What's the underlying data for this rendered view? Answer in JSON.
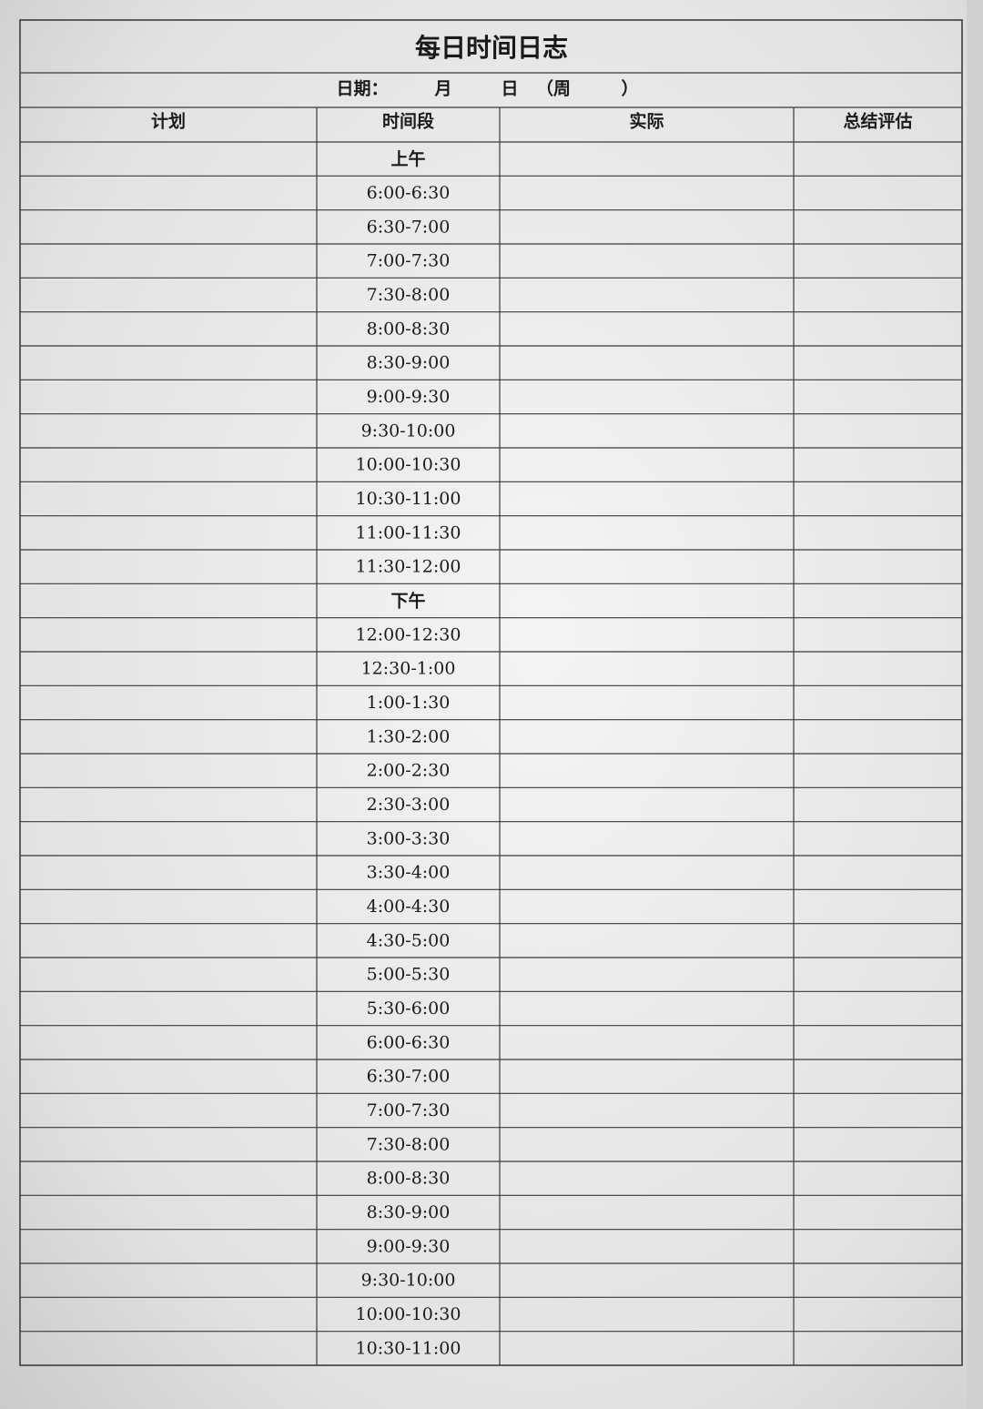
{
  "title": "每日时间日志",
  "date_line": [
    "日期：",
    "月",
    "日",
    "（周",
    "）"
  ],
  "table": {
    "headers": [
      "计划",
      "时间段",
      "实际",
      "总结评估"
    ],
    "rows": [
      "上午",
      "6:00-6:30",
      "6:30-7:00",
      "7:00-7:30",
      "7:30-8:00",
      "8:00-8:30",
      "8:30-9:00",
      "9:00-9:30",
      "9:30-10:00",
      "10:00-10:30",
      "10:30-11:00",
      "11:00-11:30",
      "11:30-12:00",
      "下午",
      "12:00-12:30",
      "12:30-1:00",
      "1:00-1:30",
      "1:30-2:00",
      "2:00-2:30",
      "2:30-3:00",
      "3:00-3:30",
      "3:30-4:00",
      "4:00-4:30",
      "4:30-5:00",
      "5:00-5:30",
      "5:30-6:00",
      "6:00-6:30",
      "6:30-7:00",
      "7:00-7:30",
      "7:30-8:00",
      "8:00-8:30",
      "8:30-9:00",
      "9:00-9:30",
      "9:30-10:00",
      "10:00-10:30",
      "10:30-11:00"
    ]
  }
}
